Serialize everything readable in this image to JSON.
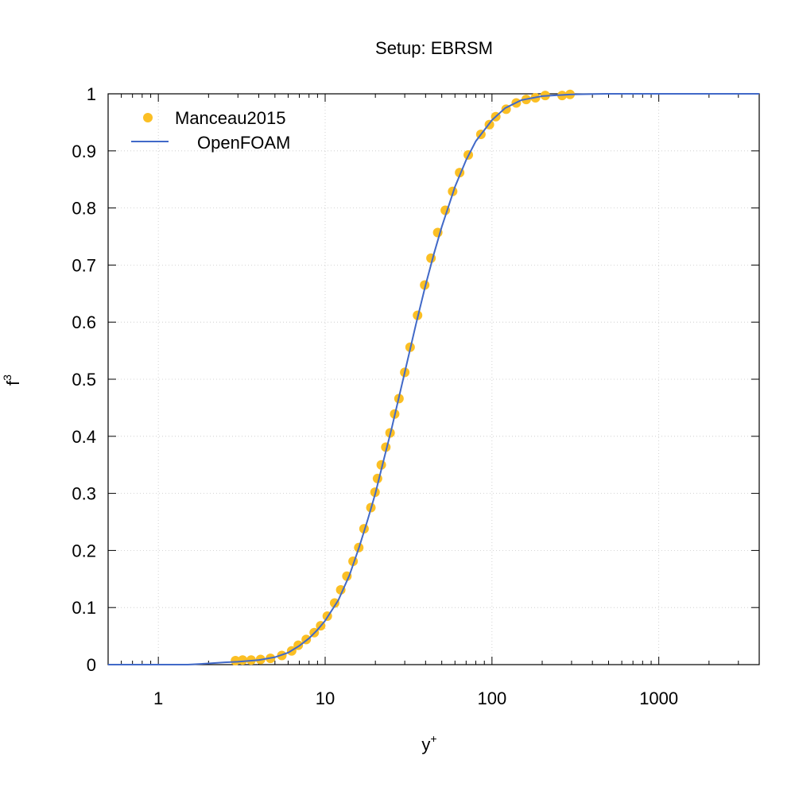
{
  "chart_data": {
    "type": "scatter",
    "title": "Setup: EBRSM",
    "xlabel": "y",
    "xlabel_sup": "+",
    "ylabel": "f",
    "ylabel_sup": "3",
    "xscale": "log",
    "xlim": [
      0.5,
      4000
    ],
    "ylim": [
      0,
      1
    ],
    "grid": true,
    "legend_position": "top-left",
    "x_ticks": [
      1,
      10,
      100,
      1000
    ],
    "x_tick_labels": [
      "1",
      "10",
      "100",
      "1000"
    ],
    "y_ticks": [
      0,
      0.1,
      0.2,
      0.3,
      0.4,
      0.5,
      0.6,
      0.7,
      0.8,
      0.9,
      1
    ],
    "y_tick_labels": [
      "0",
      "0.1",
      "0.2",
      "0.3",
      "0.4",
      "0.5",
      "0.6",
      "0.7",
      "0.8",
      "0.9",
      "1"
    ],
    "series": [
      {
        "name": "Manceau2015",
        "kind": "scatter",
        "color": "#fbbf24",
        "points": [
          [
            2.9,
            0.007
          ],
          [
            3.2,
            0.008
          ],
          [
            3.6,
            0.008
          ],
          [
            4.1,
            0.009
          ],
          [
            4.7,
            0.011
          ],
          [
            5.5,
            0.016
          ],
          [
            6.3,
            0.024
          ],
          [
            6.9,
            0.034
          ],
          [
            7.7,
            0.044
          ],
          [
            8.6,
            0.056
          ],
          [
            9.4,
            0.068
          ],
          [
            10.3,
            0.085
          ],
          [
            11.4,
            0.108
          ],
          [
            12.4,
            0.131
          ],
          [
            13.5,
            0.155
          ],
          [
            14.7,
            0.181
          ],
          [
            15.9,
            0.205
          ],
          [
            17.1,
            0.238
          ],
          [
            18.8,
            0.275
          ],
          [
            19.9,
            0.302
          ],
          [
            20.6,
            0.326
          ],
          [
            21.7,
            0.35
          ],
          [
            23.1,
            0.381
          ],
          [
            24.5,
            0.406
          ],
          [
            26.1,
            0.439
          ],
          [
            27.7,
            0.466
          ],
          [
            30.0,
            0.512
          ],
          [
            32.3,
            0.556
          ],
          [
            35.8,
            0.612
          ],
          [
            39.5,
            0.665
          ],
          [
            43.1,
            0.712
          ],
          [
            47.3,
            0.757
          ],
          [
            52.5,
            0.796
          ],
          [
            58.1,
            0.829
          ],
          [
            64.0,
            0.862
          ],
          [
            72.1,
            0.893
          ],
          [
            85.8,
            0.929
          ],
          [
            96.5,
            0.946
          ],
          [
            105.4,
            0.96
          ],
          [
            121.6,
            0.973
          ],
          [
            139.8,
            0.984
          ],
          [
            160.4,
            0.99
          ],
          [
            182.2,
            0.993
          ],
          [
            208.6,
            0.997
          ],
          [
            263.3,
            0.997
          ],
          [
            293.7,
            0.999
          ]
        ]
      },
      {
        "name": "OpenFOAM",
        "kind": "line",
        "color": "#4169c8",
        "points": [
          [
            0.5,
            0.0
          ],
          [
            1.0,
            0.0
          ],
          [
            1.5,
            0.0
          ],
          [
            2.0,
            0.002
          ],
          [
            2.5,
            0.004
          ],
          [
            3.0,
            0.005
          ],
          [
            4.0,
            0.008
          ],
          [
            5.0,
            0.013
          ],
          [
            6.0,
            0.021
          ],
          [
            7.0,
            0.033
          ],
          [
            8.0,
            0.046
          ],
          [
            9.0,
            0.061
          ],
          [
            10.0,
            0.077
          ],
          [
            12.0,
            0.113
          ],
          [
            14.0,
            0.157
          ],
          [
            16.0,
            0.206
          ],
          [
            18.0,
            0.254
          ],
          [
            20.0,
            0.3
          ],
          [
            22.5,
            0.36
          ],
          [
            25.0,
            0.413
          ],
          [
            30.0,
            0.512
          ],
          [
            35.0,
            0.596
          ],
          [
            40.0,
            0.665
          ],
          [
            45.0,
            0.721
          ],
          [
            50.0,
            0.767
          ],
          [
            60.0,
            0.837
          ],
          [
            70.0,
            0.884
          ],
          [
            80.0,
            0.917
          ],
          [
            100.0,
            0.954
          ],
          [
            120.0,
            0.975
          ],
          [
            150.0,
            0.989
          ],
          [
            200.0,
            0.996
          ],
          [
            300.0,
            0.999
          ],
          [
            500.0,
            1.0
          ],
          [
            1000.0,
            1.0
          ],
          [
            4000.0,
            1.0
          ]
        ]
      }
    ]
  }
}
